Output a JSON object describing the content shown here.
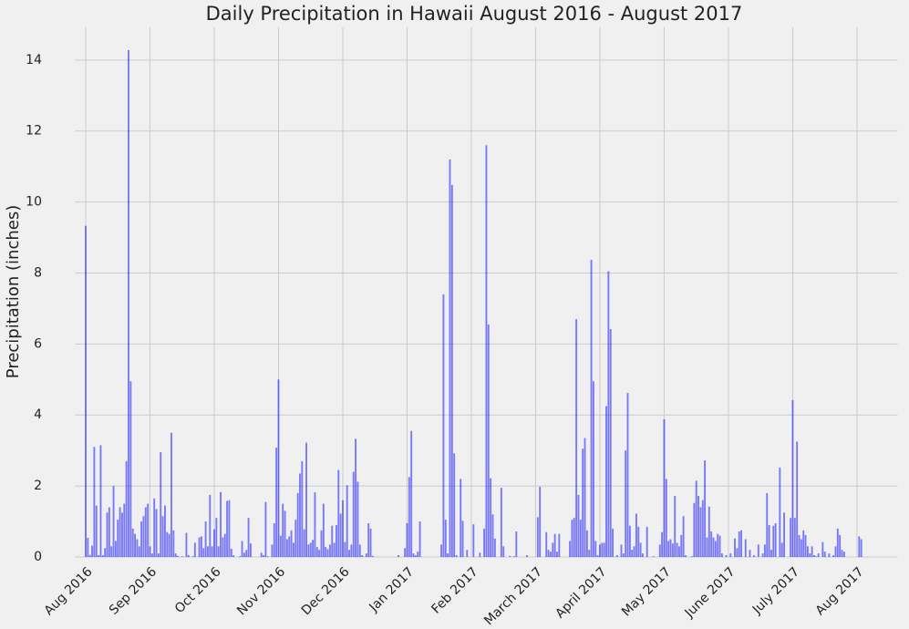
{
  "chart_data": {
    "type": "bar",
    "title": "Daily Precipitation in Hawaii August 2016 - August 2017",
    "ylabel": "Precipitation (inches)",
    "color": "#0000ff",
    "grid": true,
    "xlim": [
      -5,
      379
    ],
    "ylim": [
      0,
      14.92
    ],
    "yticks": [
      0,
      2,
      4,
      6,
      8,
      10,
      12,
      14
    ],
    "xticks": [
      {
        "value": 0,
        "label": "Aug 2016"
      },
      {
        "value": 30,
        "label": "Sep 2016"
      },
      {
        "value": 60,
        "label": "Oct 2016"
      },
      {
        "value": 90,
        "label": "Nov 2016"
      },
      {
        "value": 120,
        "label": "Dec 2016"
      },
      {
        "value": 150,
        "label": "Jan 2017"
      },
      {
        "value": 180,
        "label": "Feb 2017"
      },
      {
        "value": 210,
        "label": "March 2017"
      },
      {
        "value": 240,
        "label": "April 2017"
      },
      {
        "value": 270,
        "label": "May 2017"
      },
      {
        "value": 300,
        "label": "June 2017"
      },
      {
        "value": 330,
        "label": "July 2017"
      },
      {
        "value": 360,
        "label": "Aug 2017"
      }
    ],
    "x": [
      0,
      1,
      2,
      3,
      4,
      5,
      6,
      7,
      8,
      9,
      10,
      11,
      12,
      13,
      14,
      15,
      16,
      17,
      18,
      19,
      20,
      21,
      22,
      23,
      24,
      25,
      26,
      27,
      28,
      29,
      30,
      31,
      32,
      33,
      34,
      35,
      36,
      37,
      38,
      39,
      40,
      41,
      42,
      43,
      44,
      45,
      46,
      47,
      48,
      49,
      50,
      51,
      52,
      53,
      54,
      55,
      56,
      57,
      58,
      59,
      60,
      61,
      62,
      63,
      64,
      65,
      66,
      67,
      68,
      69,
      70,
      71,
      72,
      73,
      74,
      75,
      76,
      77,
      78,
      79,
      80,
      81,
      82,
      83,
      84,
      85,
      86,
      87,
      88,
      89,
      90,
      91,
      92,
      93,
      94,
      95,
      96,
      97,
      98,
      99,
      100,
      101,
      102,
      103,
      104,
      105,
      106,
      107,
      108,
      109,
      110,
      111,
      112,
      113,
      114,
      115,
      116,
      117,
      118,
      119,
      120,
      121,
      122,
      123,
      124,
      125,
      126,
      127,
      128,
      129,
      130,
      131,
      132,
      133,
      134,
      135,
      136,
      137,
      138,
      139,
      140,
      141,
      142,
      143,
      144,
      145,
      146,
      147,
      148,
      149,
      150,
      151,
      152,
      153,
      154,
      155,
      156,
      157,
      158,
      159,
      160,
      161,
      162,
      163,
      164,
      165,
      166,
      167,
      168,
      169,
      170,
      171,
      172,
      173,
      174,
      175,
      176,
      177,
      178,
      179,
      180,
      181,
      182,
      183,
      184,
      185,
      186,
      187,
      188,
      189,
      190,
      191,
      192,
      193,
      194,
      195,
      196,
      197,
      198,
      199,
      200,
      201,
      202,
      203,
      204,
      205,
      206,
      207,
      208,
      209,
      210,
      211,
      212,
      213,
      214,
      215,
      216,
      217,
      218,
      219,
      220,
      221,
      222,
      223,
      224,
      225,
      226,
      227,
      228,
      229,
      230,
      231,
      232,
      233,
      234,
      235,
      236,
      237,
      238,
      239,
      240,
      241,
      242,
      243,
      244,
      245,
      246,
      247,
      248,
      249,
      250,
      251,
      252,
      253,
      254,
      255,
      256,
      257,
      258,
      259,
      260,
      261,
      262,
      263,
      264,
      265,
      266,
      267,
      268,
      269,
      270,
      271,
      272,
      273,
      274,
      275,
      276,
      277,
      278,
      279,
      280,
      281,
      282,
      283,
      284,
      285,
      286,
      287,
      288,
      289,
      290,
      291,
      292,
      293,
      294,
      295,
      296,
      297,
      298,
      299,
      300,
      301,
      302,
      303,
      304,
      305,
      306,
      307,
      308,
      309,
      310,
      311,
      312,
      313,
      314,
      315,
      316,
      317,
      318,
      319,
      320,
      321,
      322,
      323,
      324,
      325,
      326,
      327,
      328,
      329,
      330,
      331,
      332,
      333,
      334,
      335,
      336,
      337,
      338,
      339,
      340,
      341,
      342,
      343,
      344,
      345,
      346,
      347,
      348,
      349,
      350,
      351,
      352,
      353,
      354,
      355,
      356,
      357,
      358,
      359,
      360,
      361,
      362
    ],
    "values": [
      9.33,
      0.54,
      0.06,
      0.32,
      3.1,
      1.45,
      0.05,
      3.15,
      0.05,
      0.25,
      1.25,
      1.4,
      0.3,
      2.0,
      0.45,
      1.05,
      1.4,
      1.25,
      1.5,
      2.7,
      14.28,
      4.95,
      0.8,
      0.65,
      0.5,
      0.3,
      1.0,
      1.15,
      1.4,
      1.5,
      0.3,
      0.1,
      1.65,
      1.35,
      0.1,
      2.95,
      1.15,
      1.45,
      0.7,
      0.65,
      3.5,
      0.75,
      0.1,
      0.03,
      0,
      0.02,
      0,
      0.68,
      0.05,
      0,
      0.02,
      0.4,
      0,
      0.55,
      0.58,
      0.25,
      1.0,
      0.3,
      1.75,
      0.3,
      0.78,
      1.1,
      0.3,
      1.83,
      0.55,
      0.65,
      1.58,
      1.6,
      0.23,
      0.05,
      0,
      0,
      0.02,
      0.45,
      0.12,
      0.2,
      1.1,
      0.38,
      0,
      0,
      0,
      0,
      0.12,
      0.05,
      1.55,
      0.02,
      0,
      0.35,
      0.95,
      3.08,
      5.0,
      0.6,
      1.5,
      1.3,
      0.5,
      0.58,
      0.75,
      0.4,
      1.05,
      1.8,
      2.35,
      2.7,
      0.78,
      3.22,
      0.35,
      0.4,
      0.48,
      1.82,
      0.28,
      0.2,
      0.75,
      1.5,
      0.28,
      0.22,
      0.35,
      0.88,
      0.4,
      0.9,
      2.45,
      1.22,
      1.6,
      0.42,
      2.02,
      0.2,
      0.35,
      2.4,
      3.33,
      2.12,
      0.35,
      0.05,
      0,
      0.1,
      0.95,
      0.8,
      0.03,
      0,
      0,
      0,
      0,
      0,
      0,
      0,
      0,
      0,
      0,
      0,
      0.05,
      0,
      0,
      0.25,
      0.95,
      2.25,
      3.55,
      0.1,
      0.05,
      0.15,
      1.0,
      0,
      0,
      0,
      0,
      0,
      0,
      0,
      0,
      0,
      0.35,
      7.4,
      1.05,
      0.1,
      11.2,
      10.48,
      2.92,
      0.05,
      0,
      2.2,
      1.02,
      0,
      0.2,
      0,
      0,
      0.92,
      0,
      0,
      0.12,
      0,
      0.8,
      11.6,
      6.55,
      2.22,
      1.2,
      0.52,
      0,
      0,
      1.95,
      0.3,
      0,
      0,
      0.03,
      0,
      0.02,
      0.72,
      0,
      0,
      0,
      0,
      0.05,
      0,
      0,
      0,
      0,
      1.12,
      1.98,
      0,
      0,
      0.7,
      0.2,
      0.15,
      0.4,
      0.65,
      0.15,
      0.65,
      0,
      0,
      0,
      0,
      0.45,
      1.05,
      1.1,
      6.7,
      1.75,
      1.05,
      3.05,
      3.35,
      0.75,
      0.2,
      8.37,
      4.95,
      0.45,
      0.05,
      0.35,
      0.4,
      0.4,
      4.25,
      8.05,
      6.42,
      0.8,
      0,
      0.05,
      0,
      0.35,
      0.1,
      3.0,
      4.62,
      0.88,
      0.2,
      0.3,
      1.22,
      0.85,
      0.4,
      0.1,
      0,
      0.85,
      0,
      0,
      0.02,
      0,
      0,
      0.35,
      0.7,
      3.88,
      2.2,
      0.45,
      0.5,
      0.38,
      1.72,
      0.4,
      0.3,
      0.62,
      1.15,
      0.05,
      0,
      0,
      0.02,
      1.52,
      2.15,
      1.72,
      1.4,
      1.6,
      2.72,
      0.55,
      1.42,
      0.72,
      0.55,
      0.45,
      0.65,
      0.6,
      0.1,
      0,
      0.05,
      0,
      0.1,
      0,
      0.52,
      0.25,
      0.72,
      0.75,
      0,
      0.5,
      0,
      0.2,
      0,
      0.05,
      0,
      0.35,
      0,
      0.1,
      0.35,
      1.8,
      0.9,
      0.2,
      0.88,
      0.95,
      0,
      2.52,
      0.4,
      1.25,
      0,
      0,
      1.1,
      4.42,
      1.1,
      3.25,
      0.62,
      0.5,
      0.75,
      0.62,
      0.3,
      0.1,
      0.3,
      0.05,
      0.02,
      0.1,
      0,
      0.42,
      0.15,
      0,
      0.1,
      0,
      0.05,
      0.3,
      0.8,
      0.62,
      0.2,
      0.15,
      0,
      0,
      0,
      0,
      0,
      0,
      0.58,
      0.5
    ]
  }
}
